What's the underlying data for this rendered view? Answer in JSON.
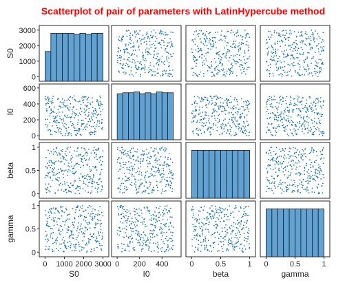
{
  "chart_data": {
    "type": "scatter",
    "title": "Scatterplot of pair of parameters with LatinHypercube method",
    "subtitle": "",
    "grid": false,
    "variables": [
      "S0",
      "I0",
      "beta",
      "gamma"
    ],
    "axes": {
      "S0": {
        "label": "S0",
        "range": [
          0,
          3000
        ],
        "ylim": [
          -300,
          3300
        ],
        "xlim": [
          -300,
          3300
        ],
        "ticks": [
          0,
          1000,
          2000,
          3000
        ],
        "tick_labels": [
          "0",
          "1000",
          "2000",
          "3000"
        ]
      },
      "I0": {
        "label": "I0",
        "range": [
          0,
          500
        ],
        "ylim": [
          -50,
          650
        ],
        "xlim": [
          -50,
          570
        ],
        "ticks_y": [
          0,
          200,
          400,
          600
        ],
        "tick_labels_y": [
          "0",
          "200",
          "400",
          "600"
        ],
        "ticks_x": [
          0,
          200,
          400
        ],
        "tick_labels_x": [
          "0",
          "200",
          "400"
        ]
      },
      "beta": {
        "label": "beta",
        "range": [
          0,
          1
        ],
        "ylim": [
          -0.1,
          1.1
        ],
        "xlim": [
          -0.1,
          1.1
        ],
        "ticks_y": [
          0,
          0.5,
          1
        ],
        "tick_labels_y": [
          "0",
          "0.5",
          "1"
        ],
        "ticks_x": [
          0,
          0.5,
          1
        ],
        "tick_labels_x": [
          "0",
          "0.5",
          "1"
        ]
      },
      "gamma": {
        "label": "gamma",
        "range": [
          0,
          1
        ],
        "ylim": [
          -0.1,
          1.1
        ],
        "xlim": [
          -0.1,
          1.1
        ],
        "ticks_y": [
          0,
          0.5,
          1
        ],
        "tick_labels_y": [
          "0",
          "0.5",
          "1"
        ],
        "ticks_x": [
          0,
          0.5,
          1
        ],
        "tick_labels_x": [
          "0",
          "0.5",
          "1"
        ]
      }
    },
    "histograms": {
      "S0": {
        "bin_edges": [
          0,
          300,
          600,
          900,
          1200,
          1500,
          1800,
          2100,
          2400,
          2700,
          3000
        ],
        "relative_heights": [
          0.62,
          1.0,
          1.0,
          1.0,
          1.0,
          0.98,
          1.0,
          0.98,
          1.0,
          1.0
        ]
      },
      "I0": {
        "bin_edges": [
          0,
          50,
          100,
          150,
          200,
          250,
          300,
          350,
          400,
          450,
          500
        ],
        "relative_heights": [
          0.96,
          0.98,
          0.98,
          1.0,
          0.96,
          0.98,
          0.96,
          1.0,
          0.98,
          0.98
        ]
      },
      "beta": {
        "bin_edges": [
          0,
          0.1,
          0.2,
          0.3,
          0.4,
          0.5,
          0.6,
          0.7,
          0.8,
          0.9,
          1.0
        ],
        "relative_heights": [
          1,
          1,
          1,
          1,
          1,
          1,
          1,
          1,
          1,
          1
        ]
      },
      "gamma": {
        "bin_edges": [
          0,
          0.1,
          0.2,
          0.3,
          0.4,
          0.5,
          0.6,
          0.7,
          0.8,
          0.9,
          1.0
        ],
        "relative_heights": [
          1,
          1,
          1,
          1,
          1,
          1,
          1,
          1,
          1,
          1
        ]
      }
    },
    "samples": 300,
    "sampling_method": "LatinHypercube",
    "colors": {
      "marker": "#1f77b4",
      "bar_fill": "#5fa2d3",
      "title": "#ff0000"
    }
  }
}
